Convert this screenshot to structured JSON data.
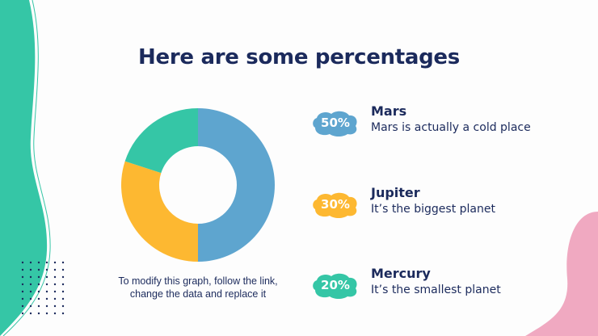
{
  "title": "Here are some percentages",
  "caption": {
    "line1": "To modify this graph, follow the link,",
    "line2": "change the data and replace it"
  },
  "colors": {
    "mars": "#5ea5cf",
    "jupiter": "#fdb831",
    "mercury": "#35c6a6",
    "title": "#1b2a5c",
    "green_blob": "#35c6a6",
    "pink_blob": "#f0a9c1"
  },
  "items": [
    {
      "badge": "50%",
      "name": "Mars",
      "desc": "Mars is actually a cold place",
      "color": "#5ea5cf"
    },
    {
      "badge": "30%",
      "name": "Jupiter",
      "desc": "It’s the biggest planet",
      "color": "#fdb831"
    },
    {
      "badge": "20%",
      "name": "Mercury",
      "desc": "It’s the smallest planet",
      "color": "#35c6a6"
    }
  ],
  "chart_data": {
    "type": "pie",
    "style": "donut",
    "title": "",
    "categories": [
      "Mars",
      "Jupiter",
      "Mercury"
    ],
    "values": [
      50,
      30,
      20
    ],
    "colors": [
      "#5ea5cf",
      "#fdb831",
      "#35c6a6"
    ],
    "legend": "right"
  }
}
